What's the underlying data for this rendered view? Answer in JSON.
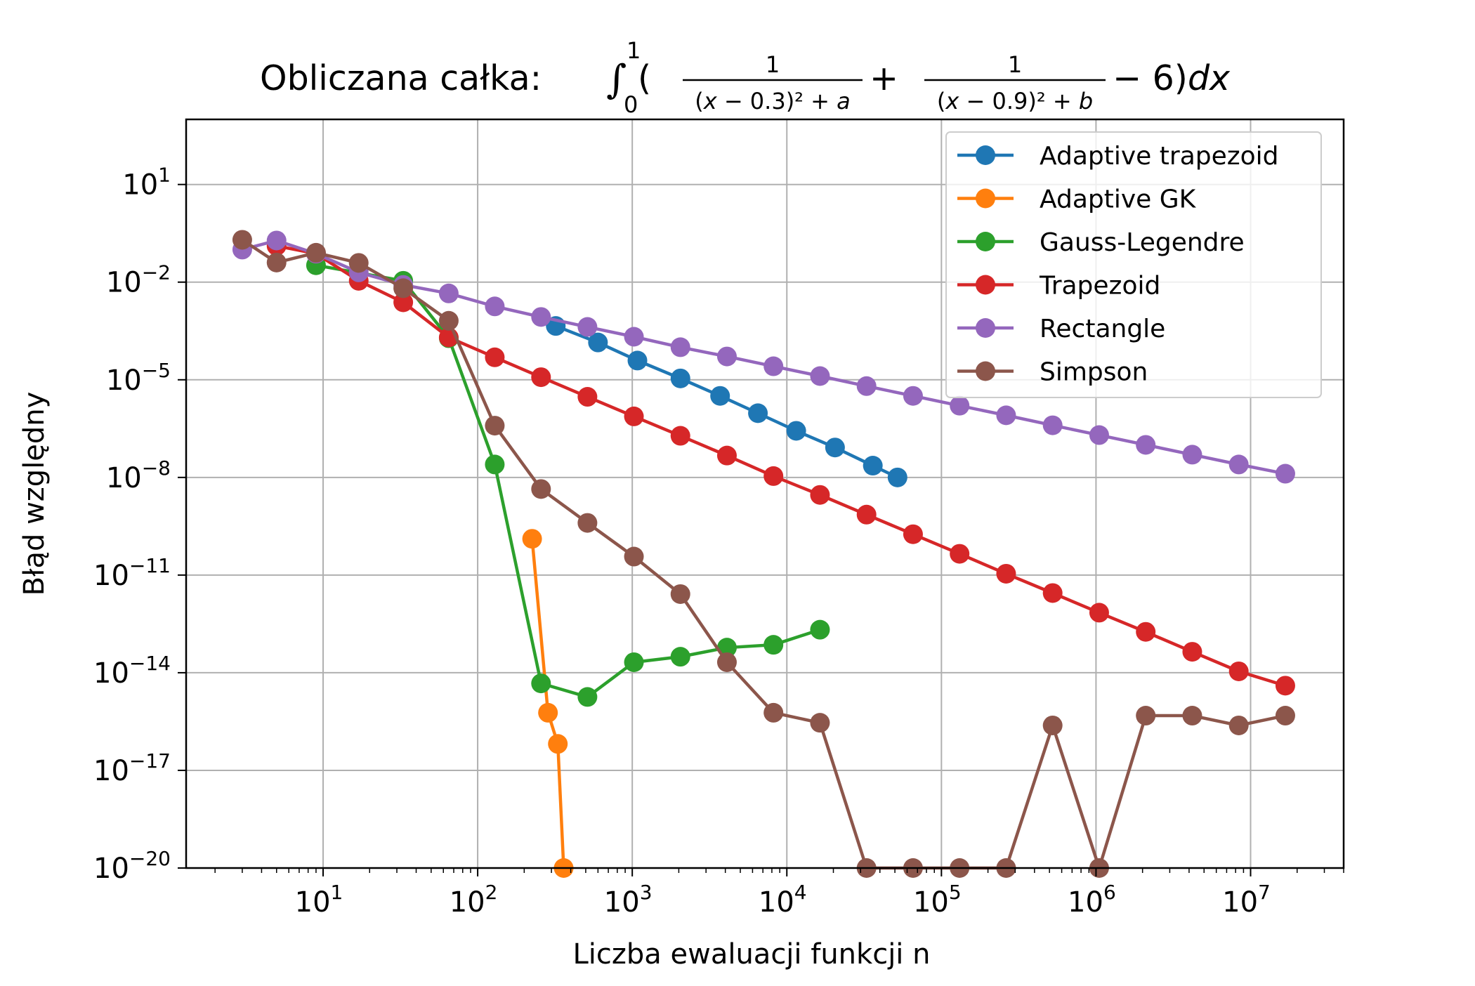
{
  "chart_data": {
    "type": "line",
    "title_prefix": "Obliczana całka: ",
    "title_math": "∫₀¹(1/((x−0.3)²+a) + 1/((x−0.9)²+b) − 6)dx",
    "xlabel": "Liczba ewaluacji funkcji n",
    "ylabel": "Błąd względny",
    "xscale": "log",
    "yscale": "log",
    "xlim": [
      1.3,
      40000000
    ],
    "ylim": [
      1e-20,
      1000
    ],
    "grid": true,
    "legend_position": "top-right",
    "x_ticks": [
      {
        "base": "10",
        "exp": "1"
      },
      {
        "base": "10",
        "exp": "2"
      },
      {
        "base": "10",
        "exp": "3"
      },
      {
        "base": "10",
        "exp": "4"
      },
      {
        "base": "10",
        "exp": "5"
      },
      {
        "base": "10",
        "exp": "6"
      },
      {
        "base": "10",
        "exp": "7"
      }
    ],
    "y_ticks": [
      {
        "base": "10",
        "exp": "1"
      },
      {
        "base": "10",
        "exp": "−2"
      },
      {
        "base": "10",
        "exp": "−5"
      },
      {
        "base": "10",
        "exp": "−8"
      },
      {
        "base": "10",
        "exp": "−11"
      },
      {
        "base": "10",
        "exp": "−14"
      },
      {
        "base": "10",
        "exp": "−17"
      },
      {
        "base": "10",
        "exp": "−20"
      }
    ],
    "series": [
      {
        "name": "Adaptive trapezoid",
        "color": "#1f77b4",
        "x": [
          320,
          600,
          1080,
          2050,
          3700,
          6500,
          11500,
          20500,
          36000,
          52000
        ],
        "y": [
          0.00045,
          0.00014,
          3.9e-05,
          1.1e-05,
          3.2e-06,
          9.4e-07,
          2.7e-07,
          8.3e-08,
          2.3e-08,
          1e-08
        ]
      },
      {
        "name": "Adaptive GK",
        "color": "#ff7f0e",
        "x": [
          225,
          285,
          330,
          360
        ],
        "y": [
          1.3e-10,
          5.9e-16,
          6.5e-17,
          1e-20
        ]
      },
      {
        "name": "Gauss-Legendre",
        "color": "#2ca02c",
        "x": [
          9,
          33,
          65,
          129,
          257,
          513,
          1025,
          2049,
          4097,
          8193,
          16385
        ],
        "y": [
          0.033,
          0.011,
          0.00019,
          2.5e-08,
          4.7e-15,
          1.8e-15,
          2.1e-14,
          3.1e-14,
          5.9e-14,
          7.2e-14,
          2.1e-13
        ]
      },
      {
        "name": "Trapezoid",
        "color": "#d62728",
        "x": [
          5,
          9,
          17,
          33,
          65,
          129,
          257,
          513,
          1025,
          2049,
          4097,
          8193,
          16385,
          32769,
          65537,
          131073,
          262145,
          524289,
          1048577,
          2097153,
          4194305,
          8388609,
          16777217
        ],
        "y": [
          0.13,
          0.075,
          0.011,
          0.0024,
          0.0002,
          4.9e-05,
          1.2e-05,
          3e-06,
          7.5e-07,
          1.9e-07,
          4.7e-08,
          1.1e-08,
          2.9e-09,
          7.2e-10,
          1.8e-10,
          4.5e-11,
          1.1e-11,
          2.8e-12,
          7e-13,
          1.8e-13,
          4.4e-14,
          1.1e-14,
          4e-15
        ]
      },
      {
        "name": "Rectangle",
        "color": "#9467bd",
        "x": [
          3,
          5,
          9,
          17,
          33,
          65,
          129,
          257,
          513,
          1025,
          2049,
          4097,
          8193,
          16385,
          32769,
          65537,
          131073,
          262145,
          524289,
          1048577,
          2097153,
          4194305,
          8388609,
          16777217
        ],
        "y": [
          0.1,
          0.19,
          0.075,
          0.02,
          0.0082,
          0.0045,
          0.0018,
          0.00085,
          0.00042,
          0.00021,
          0.0001,
          5.2e-05,
          2.6e-05,
          1.3e-05,
          6.4e-06,
          3.2e-06,
          1.6e-06,
          8.1e-07,
          4e-07,
          2e-07,
          1e-07,
          5e-08,
          2.5e-08,
          1.3e-08
        ]
      },
      {
        "name": "Simpson",
        "color": "#8c564b",
        "x": [
          3,
          5,
          9,
          17,
          33,
          65,
          129,
          257,
          513,
          1025,
          2049,
          4097,
          8193,
          16385,
          32769,
          65537,
          131073,
          262145,
          524289,
          1048577,
          2097153,
          4194305,
          8388609,
          16777217
        ],
        "y": [
          0.2,
          0.04,
          0.08,
          0.039,
          0.0065,
          0.00065,
          3.9e-07,
          4.4e-09,
          4e-10,
          3.7e-11,
          2.6e-12,
          2.1e-14,
          5.9e-16,
          2.9e-16,
          1e-20,
          1e-20,
          1e-20,
          1e-20,
          2.4e-16,
          1e-20,
          4.8e-16,
          4.8e-16,
          2.4e-16,
          4.8e-16
        ]
      }
    ]
  }
}
